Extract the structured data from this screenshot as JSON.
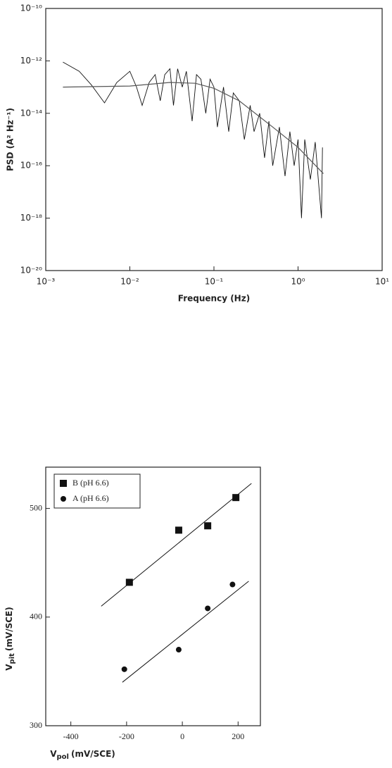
{
  "chart_data": [
    {
      "type": "line",
      "log_x": true,
      "log_y": true,
      "xlabel": "Frequency (Hz)",
      "ylabel": "PSD (A² Hz⁻¹)",
      "xlim": [
        0.001,
        10
      ],
      "ylim": [
        1e-20,
        1e-10
      ],
      "xticks": [
        {
          "value": 0.001,
          "label": "10⁻³"
        },
        {
          "value": 0.01,
          "label": "10⁻²"
        },
        {
          "value": 0.1,
          "label": "10⁻¹"
        },
        {
          "value": 1,
          "label": "10⁰"
        },
        {
          "value": 10,
          "label": "10¹"
        }
      ],
      "yticks": [
        {
          "value": 1e-20,
          "label": "10⁻²⁰"
        },
        {
          "value": 1e-18,
          "label": "10⁻¹⁸"
        },
        {
          "value": 1e-16,
          "label": "10⁻¹⁶"
        },
        {
          "value": 1e-14,
          "label": "10⁻¹⁴"
        },
        {
          "value": 1e-12,
          "label": "10⁻¹²"
        },
        {
          "value": 1e-10,
          "label": "10⁻¹⁰"
        }
      ],
      "series": [
        {
          "color": "#111111",
          "x": [
            0.0016,
            0.0025,
            0.0035,
            0.005,
            0.007,
            0.01,
            0.012,
            0.014,
            0.017,
            0.02,
            0.023,
            0.026,
            0.03,
            0.033,
            0.037,
            0.042,
            0.047,
            0.055,
            0.062,
            0.07,
            0.08,
            0.09,
            0.1,
            0.11,
            0.13,
            0.15,
            0.17,
            0.2,
            0.23,
            0.27,
            0.3,
            0.35,
            0.4,
            0.45,
            0.5,
            0.6,
            0.7,
            0.8,
            0.9,
            1.0,
            1.1,
            1.2,
            1.4,
            1.6,
            1.9,
            1.95
          ],
          "values": [
            9e-13,
            4e-13,
            1.2e-13,
            2.5e-14,
            1.5e-13,
            4e-13,
            1e-13,
            2e-14,
            1.5e-13,
            3e-13,
            3e-14,
            3e-13,
            5e-13,
            2e-14,
            5e-13,
            1e-13,
            4e-13,
            5e-15,
            3e-13,
            2e-13,
            1e-14,
            2e-13,
            1e-13,
            3e-15,
            1e-13,
            2e-15,
            6e-14,
            3e-14,
            1e-15,
            2e-14,
            2e-15,
            1e-14,
            2e-16,
            5e-15,
            1e-16,
            3e-15,
            4e-17,
            2e-15,
            1e-16,
            1e-15,
            1e-18,
            1e-15,
            3e-17,
            8e-16,
            1e-18,
            5e-16
          ]
        },
        {
          "color": "#555555",
          "x": [
            0.0016,
            0.01,
            0.03,
            0.06,
            0.1,
            0.2,
            0.5,
            1,
            2
          ],
          "values": [
            1e-13,
            1.1e-13,
            1.5e-13,
            1.4e-13,
            9e-14,
            3e-14,
            3e-15,
            5e-16,
            5e-17
          ]
        }
      ]
    },
    {
      "type": "scatter",
      "xlabel": {
        "main": "V",
        "sub": "pol",
        "unit": "(mV/SCE)"
      },
      "ylabel": {
        "main": "V",
        "sub": "pit",
        "unit": "(mV/SCE)"
      },
      "xlim": [
        -490,
        280
      ],
      "ylim": [
        300,
        538
      ],
      "xticks": [
        -400,
        -200,
        0,
        200
      ],
      "yticks": [
        300,
        400,
        500
      ],
      "legend": "upper left",
      "series": [
        {
          "name": "B (pH 6.6)",
          "marker": "square",
          "color": "#111111",
          "x": [
            -190,
            -13,
            91,
            192
          ],
          "values": [
            432,
            480,
            484,
            510
          ],
          "fit": {
            "x": [
              -291,
              248
            ],
            "values": [
              410,
              523
            ]
          }
        },
        {
          "name": "A (pH 6.6)",
          "marker": "circle",
          "color": "#111111",
          "x": [
            -208,
            -13,
            91,
            180
          ],
          "values": [
            352,
            370,
            408,
            430
          ],
          "fit": {
            "x": [
              -215,
              238
            ],
            "values": [
              340,
              433
            ]
          }
        }
      ]
    }
  ]
}
